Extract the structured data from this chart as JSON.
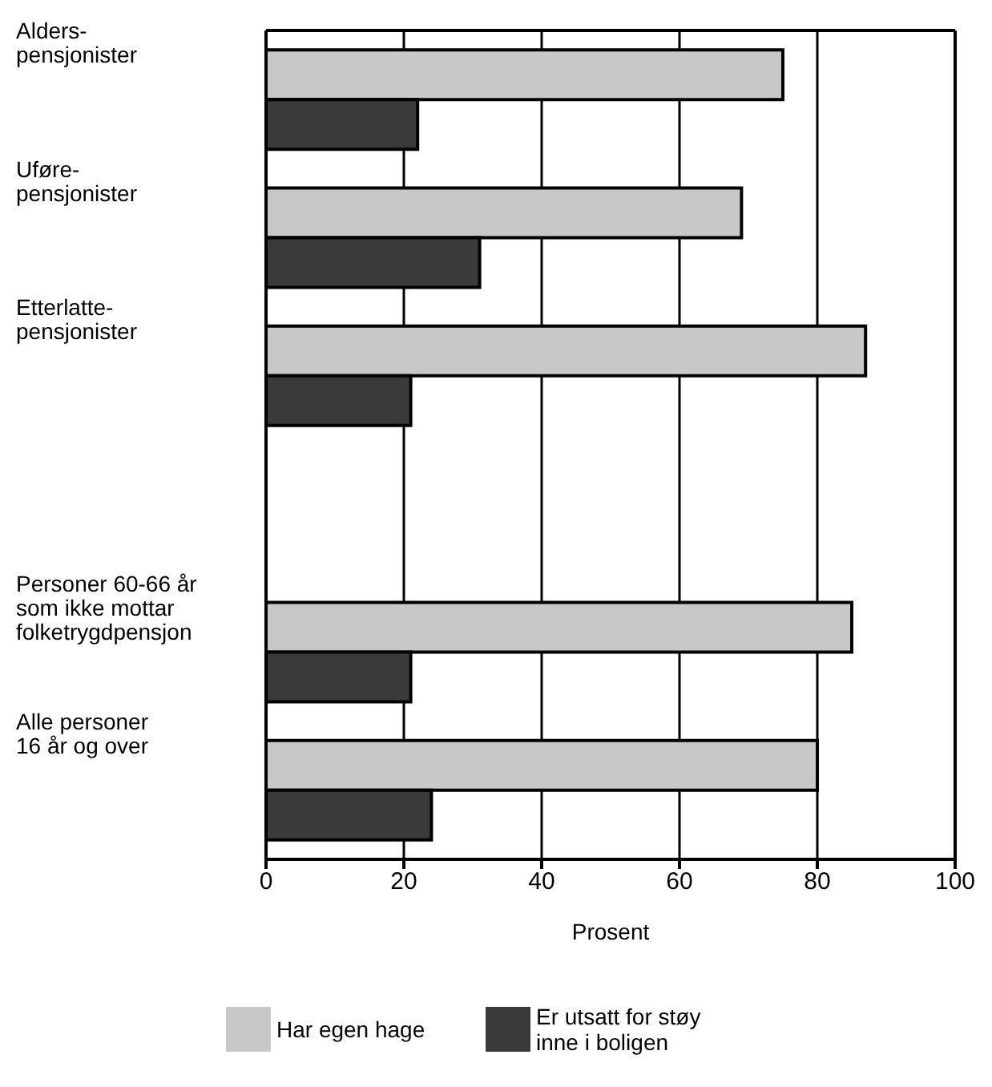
{
  "chart_data": {
    "type": "bar",
    "orientation": "horizontal",
    "xlabel": "Prosent",
    "categories": [
      "Alders-\npensjonister",
      "Uføre-\npensjonister",
      "Etterlatte-\npensjonister",
      null,
      "Personer 60-66 år\nsom ikke mottar\nfolketrygdpensjon",
      "Alle personer\n16 år og over"
    ],
    "series": [
      {
        "name": "Har egen hage",
        "color": "#c8c8c8",
        "values": [
          75,
          69,
          87,
          null,
          85,
          80
        ]
      },
      {
        "name": "Er utsatt for støy inne i boligen",
        "color": "#3a3a3a",
        "values": [
          22,
          31,
          21,
          null,
          21,
          24
        ]
      }
    ],
    "xlim": [
      0,
      100
    ],
    "xticks": [
      0,
      20,
      40,
      60,
      80,
      100
    ],
    "grid": "x",
    "legend": "bottom"
  }
}
